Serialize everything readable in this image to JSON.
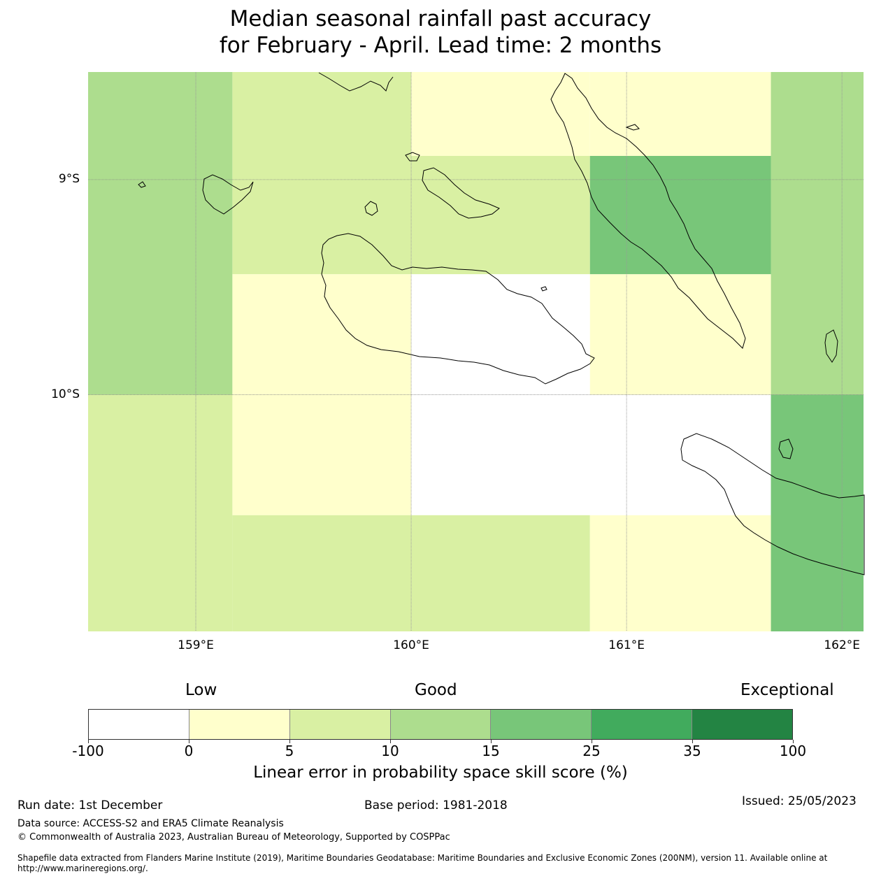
{
  "title": {
    "line1": "Median seasonal rainfall past accuracy",
    "line2": "for February - April. Lead time: 2 months"
  },
  "map": {
    "lon_range": [
      158.5,
      162.1
    ],
    "lat_range": [
      -11.1,
      -8.5
    ],
    "lon_ticks": [
      {
        "value": 159,
        "label": "159°E"
      },
      {
        "value": 160,
        "label": "160°E"
      },
      {
        "value": 161,
        "label": "161°E"
      },
      {
        "value": 162,
        "label": "162°E"
      }
    ],
    "lat_ticks": [
      {
        "value": -9,
        "label": "9°S"
      },
      {
        "value": -10,
        "label": "10°S"
      }
    ],
    "cells": [
      {
        "lon": [
          158.5,
          159.17
        ],
        "lat": [
          -8.5,
          -10.0
        ],
        "category": 3
      },
      {
        "lon": [
          158.5,
          159.17
        ],
        "lat": [
          -10.0,
          -11.1
        ],
        "category": 2
      },
      {
        "lon": [
          159.17,
          160.0
        ],
        "lat": [
          -8.5,
          -8.89
        ],
        "category": 2
      },
      {
        "lon": [
          160.0,
          160.83
        ],
        "lat": [
          -8.5,
          -8.89
        ],
        "category": 1
      },
      {
        "lon": [
          160.83,
          161.67
        ],
        "lat": [
          -8.5,
          -8.89
        ],
        "category": 1
      },
      {
        "lon": [
          161.67,
          162.1
        ],
        "lat": [
          -8.5,
          -10.0
        ],
        "category": 3
      },
      {
        "lon": [
          159.17,
          160.0
        ],
        "lat": [
          -8.89,
          -9.44
        ],
        "category": 2
      },
      {
        "lon": [
          160.0,
          160.83
        ],
        "lat": [
          -8.89,
          -9.44
        ],
        "category": 2
      },
      {
        "lon": [
          160.83,
          161.67
        ],
        "lat": [
          -8.89,
          -9.44
        ],
        "category": 4
      },
      {
        "lon": [
          159.17,
          160.0
        ],
        "lat": [
          -9.44,
          -10.0
        ],
        "category": 1
      },
      {
        "lon": [
          160.0,
          160.83
        ],
        "lat": [
          -9.44,
          -10.0
        ],
        "category": 0
      },
      {
        "lon": [
          160.83,
          161.67
        ],
        "lat": [
          -9.44,
          -10.0
        ],
        "category": 1
      },
      {
        "lon": [
          159.17,
          160.0
        ],
        "lat": [
          -10.0,
          -10.56
        ],
        "category": 1
      },
      {
        "lon": [
          160.0,
          160.83
        ],
        "lat": [
          -10.0,
          -10.56
        ],
        "category": 0
      },
      {
        "lon": [
          160.83,
          161.67
        ],
        "lat": [
          -10.0,
          -10.56
        ],
        "category": 0
      },
      {
        "lon": [
          161.67,
          162.1
        ],
        "lat": [
          -10.0,
          -11.1
        ],
        "category": 4
      },
      {
        "lon": [
          159.17,
          160.0
        ],
        "lat": [
          -10.56,
          -11.1
        ],
        "category": 2
      },
      {
        "lon": [
          160.0,
          160.83
        ],
        "lat": [
          -10.56,
          -11.1
        ],
        "category": 2
      },
      {
        "lon": [
          160.83,
          161.67
        ],
        "lat": [
          -10.56,
          -11.1
        ],
        "category": 1
      }
    ]
  },
  "legend": {
    "qualitative": {
      "low": "Low",
      "good": "Good",
      "exceptional": "Exceptional"
    },
    "colors": [
      "#ffffff",
      "#ffffcc",
      "#d9f0a3",
      "#addd8e",
      "#78c679",
      "#41ab5d",
      "#238443"
    ],
    "boundaries": [
      "-100",
      "0",
      "5",
      "10",
      "15",
      "25",
      "35",
      "100"
    ],
    "label": "Linear error in probability space skill score (%)"
  },
  "footer": {
    "run_date": "Run date: 1st December",
    "base_period": "Base period: 1981-2018",
    "issued": "Issued: 25/05/2023",
    "data_source": "Data source: ACCESS-S2 and ERA5 Climate Reanalysis",
    "copyright": "© Commonwealth of Australia 2023, Australian Bureau of Meteorology, Supported by COSPPac",
    "shapefile": "Shapefile data extracted from Flanders Marine Institute (2019), Maritime Boundaries Geodatabase: Maritime Boundaries and Exclusive Economic Zones (200NM), version 11. Available online at http://www.marineregions.org/."
  }
}
